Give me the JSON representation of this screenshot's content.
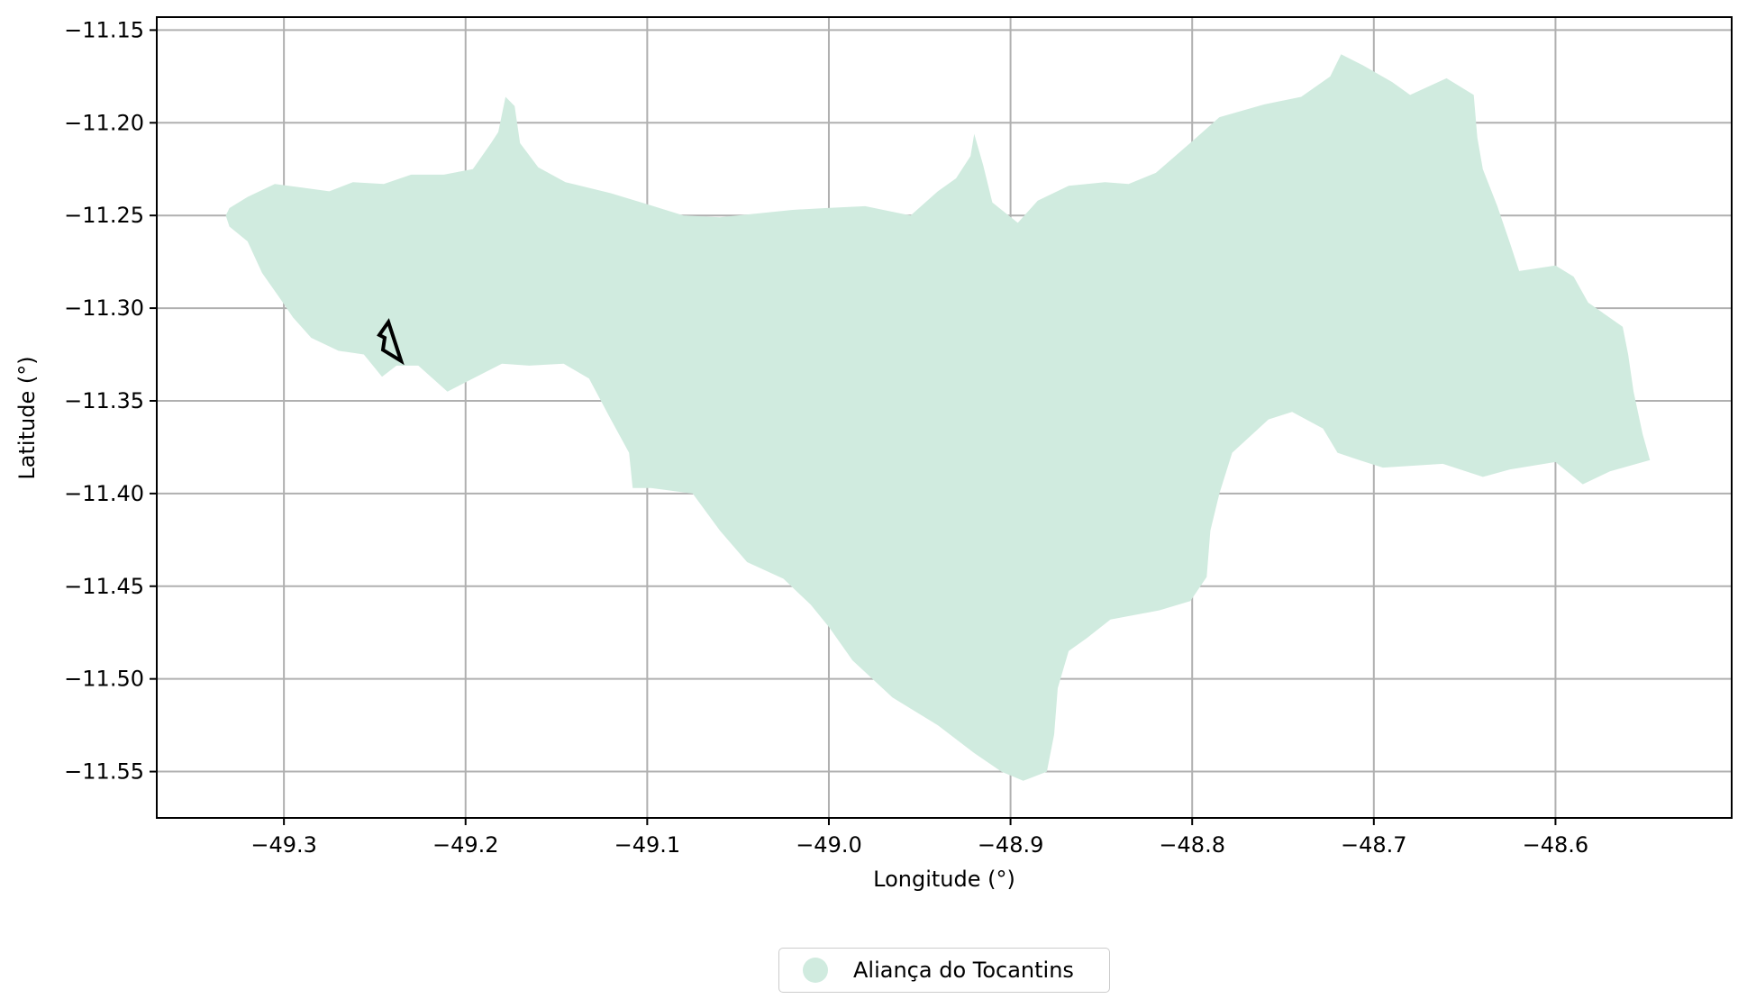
{
  "chart_data": {
    "type": "map",
    "xlabel": "Longitude (°)",
    "ylabel": "Latitude (°)",
    "xlim": [
      -49.37,
      -48.503
    ],
    "ylim": [
      -11.575,
      -11.143
    ],
    "x_ticks": [
      "−49.3",
      "−49.2",
      "−49.1",
      "−49.0",
      "−48.9",
      "−48.8",
      "−48.7",
      "−48.6"
    ],
    "x_tick_values": [
      -49.3,
      -49.2,
      -49.1,
      -49.0,
      -48.9,
      -48.8,
      -48.7,
      -48.6
    ],
    "y_ticks": [
      "−11.15",
      "−11.20",
      "−11.25",
      "−11.30",
      "−11.35",
      "−11.40",
      "−11.45",
      "−11.50",
      "−11.55"
    ],
    "y_tick_values": [
      -11.15,
      -11.2,
      -11.25,
      -11.3,
      -11.35,
      -11.4,
      -11.45,
      -11.5,
      -11.55
    ],
    "grid": true,
    "legend_position": "bottom-center",
    "region": {
      "name": "Aliança do Tocantins",
      "color": "#d0ebdf",
      "boundary": [
        [
          -49.33,
          -11.246
        ],
        [
          -49.32,
          -11.24
        ],
        [
          -49.305,
          -11.233
        ],
        [
          -49.29,
          -11.235
        ],
        [
          -49.275,
          -11.237
        ],
        [
          -49.262,
          -11.232
        ],
        [
          -49.245,
          -11.233
        ],
        [
          -49.23,
          -11.228
        ],
        [
          -49.212,
          -11.228
        ],
        [
          -49.196,
          -11.225
        ],
        [
          -49.186,
          -11.211
        ],
        [
          -49.182,
          -11.205
        ],
        [
          -49.178,
          -11.186
        ],
        [
          -49.173,
          -11.191
        ],
        [
          -49.17,
          -11.211
        ],
        [
          -49.16,
          -11.224
        ],
        [
          -49.145,
          -11.232
        ],
        [
          -49.12,
          -11.238
        ],
        [
          -49.1,
          -11.244
        ],
        [
          -49.08,
          -11.25
        ],
        [
          -49.06,
          -11.251
        ],
        [
          -49.04,
          -11.249
        ],
        [
          -49.02,
          -11.247
        ],
        [
          -49.002,
          -11.246
        ],
        [
          -48.98,
          -11.245
        ],
        [
          -48.955,
          -11.25
        ],
        [
          -48.94,
          -11.237
        ],
        [
          -48.93,
          -11.23
        ],
        [
          -48.922,
          -11.218
        ],
        [
          -48.92,
          -11.206
        ],
        [
          -48.915,
          -11.223
        ],
        [
          -48.91,
          -11.243
        ],
        [
          -48.896,
          -11.254
        ],
        [
          -48.885,
          -11.242
        ],
        [
          -48.868,
          -11.234
        ],
        [
          -48.848,
          -11.232
        ],
        [
          -48.835,
          -11.233
        ],
        [
          -48.82,
          -11.227
        ],
        [
          -48.8,
          -11.21
        ],
        [
          -48.785,
          -11.197
        ],
        [
          -48.76,
          -11.19
        ],
        [
          -48.74,
          -11.186
        ],
        [
          -48.724,
          -11.175
        ],
        [
          -48.718,
          -11.163
        ],
        [
          -48.706,
          -11.169
        ],
        [
          -48.69,
          -11.178
        ],
        [
          -48.68,
          -11.185
        ],
        [
          -48.66,
          -11.176
        ],
        [
          -48.645,
          -11.185
        ],
        [
          -48.643,
          -11.208
        ],
        [
          -48.64,
          -11.225
        ],
        [
          -48.632,
          -11.245
        ],
        [
          -48.625,
          -11.265
        ],
        [
          -48.62,
          -11.28
        ],
        [
          -48.6,
          -11.277
        ],
        [
          -48.59,
          -11.283
        ],
        [
          -48.582,
          -11.297
        ],
        [
          -48.563,
          -11.31
        ],
        [
          -48.56,
          -11.325
        ],
        [
          -48.557,
          -11.345
        ],
        [
          -48.552,
          -11.368
        ],
        [
          -48.548,
          -11.382
        ],
        [
          -48.57,
          -11.388
        ],
        [
          -48.585,
          -11.395
        ],
        [
          -48.6,
          -11.383
        ],
        [
          -48.625,
          -11.387
        ],
        [
          -48.64,
          -11.391
        ],
        [
          -48.662,
          -11.384
        ],
        [
          -48.695,
          -11.386
        ],
        [
          -48.708,
          -11.382
        ],
        [
          -48.72,
          -11.378
        ],
        [
          -48.728,
          -11.365
        ],
        [
          -48.745,
          -11.356
        ],
        [
          -48.758,
          -11.36
        ],
        [
          -48.778,
          -11.378
        ],
        [
          -48.785,
          -11.4
        ],
        [
          -48.79,
          -11.42
        ],
        [
          -48.792,
          -11.445
        ],
        [
          -48.801,
          -11.458
        ],
        [
          -48.818,
          -11.463
        ],
        [
          -48.845,
          -11.468
        ],
        [
          -48.858,
          -11.478
        ],
        [
          -48.868,
          -11.485
        ],
        [
          -48.874,
          -11.505
        ],
        [
          -48.876,
          -11.53
        ],
        [
          -48.88,
          -11.55
        ],
        [
          -48.893,
          -11.555
        ],
        [
          -48.905,
          -11.55
        ],
        [
          -48.92,
          -11.54
        ],
        [
          -48.94,
          -11.525
        ],
        [
          -48.965,
          -11.51
        ],
        [
          -48.987,
          -11.49
        ],
        [
          -49.0,
          -11.472
        ],
        [
          -49.01,
          -11.46
        ],
        [
          -49.025,
          -11.446
        ],
        [
          -49.045,
          -11.437
        ],
        [
          -49.06,
          -11.42
        ],
        [
          -49.075,
          -11.4
        ],
        [
          -49.098,
          -11.397
        ],
        [
          -49.108,
          -11.397
        ],
        [
          -49.11,
          -11.378
        ],
        [
          -49.12,
          -11.36
        ],
        [
          -49.132,
          -11.338
        ],
        [
          -49.146,
          -11.33
        ],
        [
          -49.165,
          -11.331
        ],
        [
          -49.18,
          -11.33
        ],
        [
          -49.2,
          -11.34
        ],
        [
          -49.21,
          -11.345
        ],
        [
          -49.226,
          -11.331
        ],
        [
          -49.238,
          -11.331
        ],
        [
          -49.246,
          -11.337
        ],
        [
          -49.256,
          -11.325
        ],
        [
          -49.27,
          -11.323
        ],
        [
          -49.285,
          -11.316
        ],
        [
          -49.295,
          -11.305
        ],
        [
          -49.302,
          -11.295
        ],
        [
          -49.312,
          -11.281
        ],
        [
          -49.32,
          -11.264
        ],
        [
          -49.33,
          -11.256
        ],
        [
          -49.332,
          -11.25
        ]
      ]
    },
    "outlined_feature": {
      "boundary": [
        [
          -49.2475,
          -11.3145
        ],
        [
          -49.2425,
          -11.3075
        ],
        [
          -49.2355,
          -11.3285
        ],
        [
          -49.2455,
          -11.3225
        ],
        [
          -49.2445,
          -11.316
        ]
      ],
      "stroke_color": "#000000"
    }
  },
  "legend": {
    "label": "Aliança do Tocantins",
    "marker_color": "#d0ebdf"
  }
}
